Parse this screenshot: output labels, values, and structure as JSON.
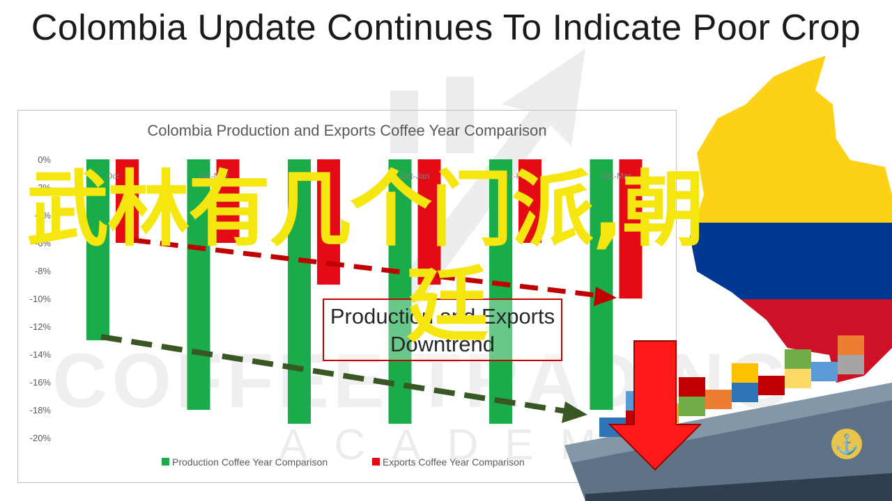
{
  "page": {
    "title": "Colombia Update Continues To Indicate Poor Crop",
    "watermark_line1": "COFFEE TRADING",
    "watermark_line2": "ACADEMY",
    "overlay_text_line1": "武林有几个门派,朝",
    "overlay_text_line2": "廷",
    "annotation": "Production and Exports Downtrend"
  },
  "colors": {
    "production": "#1aab4a",
    "exports": "#e50b14",
    "red_trend": "#c00000",
    "green_trend": "#385723",
    "overlay_text": "#f5e60f",
    "flag_yellow": "#fcd116",
    "flag_blue": "#003893",
    "flag_red": "#ce1126"
  },
  "chart_data": {
    "type": "bar",
    "title": "Colombia Production and Exports Coffee Year Comparison",
    "categories": [
      "Oct",
      "Oct-Nov",
      "Oct-Dec",
      "Oct-Jan",
      "Oct-Feb",
      "Oct-Mar"
    ],
    "series": [
      {
        "name": "Production Coffee Year Comparison",
        "values": [
          -13,
          -18,
          -19,
          -19,
          -19,
          -18
        ]
      },
      {
        "name": "Exports Coffee Year Comparison",
        "values": [
          -6,
          -6,
          -9,
          -9,
          -6,
          -10
        ]
      }
    ],
    "ylim": [
      -20,
      0
    ],
    "ytick_labels": [
      "0%",
      "-2%",
      "-4%",
      "-6%",
      "-8%",
      "-10%",
      "-12%",
      "-14%",
      "-16%",
      "-18%",
      "-20%"
    ],
    "xlabel": "",
    "ylabel": "",
    "legend_position": "bottom",
    "grid": false
  }
}
